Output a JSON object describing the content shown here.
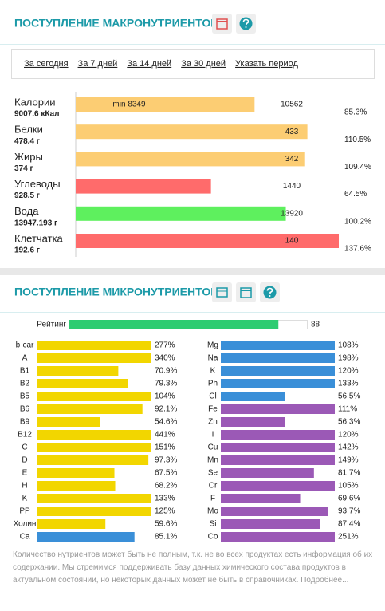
{
  "macro_panel": {
    "title": "ПОСТУПЛЕНИЕ МАКРОНУТРИЕНТОВ",
    "tabs": [
      {
        "label": "За сегодня",
        "active": false
      },
      {
        "label": "За 7 дней",
        "active": true
      },
      {
        "label": "За 14 дней",
        "active": false
      },
      {
        "label": "За 30 дней",
        "active": false
      },
      {
        "label": "Указать период",
        "active": false
      }
    ],
    "rows": [
      {
        "name": "Калории",
        "amount": "9007.6 кКал",
        "min_label": "min 8349",
        "target": 10562,
        "percent": 85.3,
        "percent_label": "85.3%",
        "color": "#fccd73"
      },
      {
        "name": "Белки",
        "amount": "478.4 г",
        "target": 433,
        "percent": 110.5,
        "percent_label": "110.5%",
        "color": "#fccd73"
      },
      {
        "name": "Жиры",
        "amount": "374 г",
        "target": 342,
        "percent": 109.4,
        "percent_label": "109.4%",
        "color": "#fccd73"
      },
      {
        "name": "Углеводы",
        "amount": "928.5 г",
        "target": 1440,
        "percent": 64.5,
        "percent_label": "64.5%",
        "color": "#ff6b6b"
      },
      {
        "name": "Вода",
        "amount": "13947.193 г",
        "target": 13920,
        "percent": 100.2,
        "percent_label": "100.2%",
        "color": "#5ef05e"
      },
      {
        "name": "Клетчатка",
        "amount": "192.6 г",
        "target": 140,
        "percent": 137.6,
        "percent_label": "137.6%",
        "color": "#ff6b6b"
      }
    ]
  },
  "micro_panel": {
    "title": "ПОСТУПЛЕНИЕ МИКРОНУТРИЕНТОВ",
    "rating": {
      "label": "Рейтинг",
      "value": 88,
      "max": 100,
      "color": "#2ecc71"
    },
    "left": [
      {
        "name": "b-car",
        "value": 277,
        "label": "277%",
        "color": "#f2d600"
      },
      {
        "name": "A",
        "value": 340,
        "label": "340%",
        "color": "#f2d600"
      },
      {
        "name": "B1",
        "value": 70.9,
        "label": "70.9%",
        "color": "#f2d600"
      },
      {
        "name": "B2",
        "value": 79.3,
        "label": "79.3%",
        "color": "#f2d600"
      },
      {
        "name": "B5",
        "value": 104,
        "label": "104%",
        "color": "#f2d600"
      },
      {
        "name": "B6",
        "value": 92.1,
        "label": "92.1%",
        "color": "#f2d600"
      },
      {
        "name": "B9",
        "value": 54.6,
        "label": "54.6%",
        "color": "#f2d600"
      },
      {
        "name": "B12",
        "value": 441,
        "label": "441%",
        "color": "#f2d600"
      },
      {
        "name": "C",
        "value": 151,
        "label": "151%",
        "color": "#f2d600"
      },
      {
        "name": "D",
        "value": 97.3,
        "label": "97.3%",
        "color": "#f2d600"
      },
      {
        "name": "E",
        "value": 67.5,
        "label": "67.5%",
        "color": "#f2d600"
      },
      {
        "name": "H",
        "value": 68.2,
        "label": "68.2%",
        "color": "#f2d600"
      },
      {
        "name": "K",
        "value": 133,
        "label": "133%",
        "color": "#f2d600"
      },
      {
        "name": "PP",
        "value": 125,
        "label": "125%",
        "color": "#f2d600"
      },
      {
        "name": "Холин",
        "value": 59.6,
        "label": "59.6%",
        "color": "#f2d600"
      },
      {
        "name": "Ca",
        "value": 85.1,
        "label": "85.1%",
        "color": "#3a8fd8"
      }
    ],
    "right": [
      {
        "name": "Mg",
        "value": 108,
        "label": "108%",
        "color": "#3a8fd8"
      },
      {
        "name": "Na",
        "value": 198,
        "label": "198%",
        "color": "#3a8fd8"
      },
      {
        "name": "K",
        "value": 120,
        "label": "120%",
        "color": "#3a8fd8"
      },
      {
        "name": "Ph",
        "value": 133,
        "label": "133%",
        "color": "#3a8fd8"
      },
      {
        "name": "Cl",
        "value": 56.5,
        "label": "56.5%",
        "color": "#3a8fd8"
      },
      {
        "name": "Fe",
        "value": 111,
        "label": "111%",
        "color": "#9b59b6"
      },
      {
        "name": "Zn",
        "value": 56.3,
        "label": "56.3%",
        "color": "#9b59b6"
      },
      {
        "name": "I",
        "value": 120,
        "label": "120%",
        "color": "#9b59b6"
      },
      {
        "name": "Cu",
        "value": 142,
        "label": "142%",
        "color": "#9b59b6"
      },
      {
        "name": "Mn",
        "value": 149,
        "label": "149%",
        "color": "#9b59b6"
      },
      {
        "name": "Se",
        "value": 81.7,
        "label": "81.7%",
        "color": "#9b59b6"
      },
      {
        "name": "Cr",
        "value": 105,
        "label": "105%",
        "color": "#9b59b6"
      },
      {
        "name": "F",
        "value": 69.6,
        "label": "69.6%",
        "color": "#9b59b6"
      },
      {
        "name": "Mo",
        "value": 93.7,
        "label": "93.7%",
        "color": "#9b59b6"
      },
      {
        "name": "Si",
        "value": 87.4,
        "label": "87.4%",
        "color": "#9b59b6"
      },
      {
        "name": "Co",
        "value": 251,
        "label": "251%",
        "color": "#9b59b6"
      }
    ],
    "note": "Количество нутриентов может быть не полным, т.к. не во всех продуктах есть информация об их содержании. Мы стремимся поддерживать базу данных химического состава продуктов в актуальном состоянии, но некоторых данных может не быть в справочниках. Подробнее..."
  }
}
